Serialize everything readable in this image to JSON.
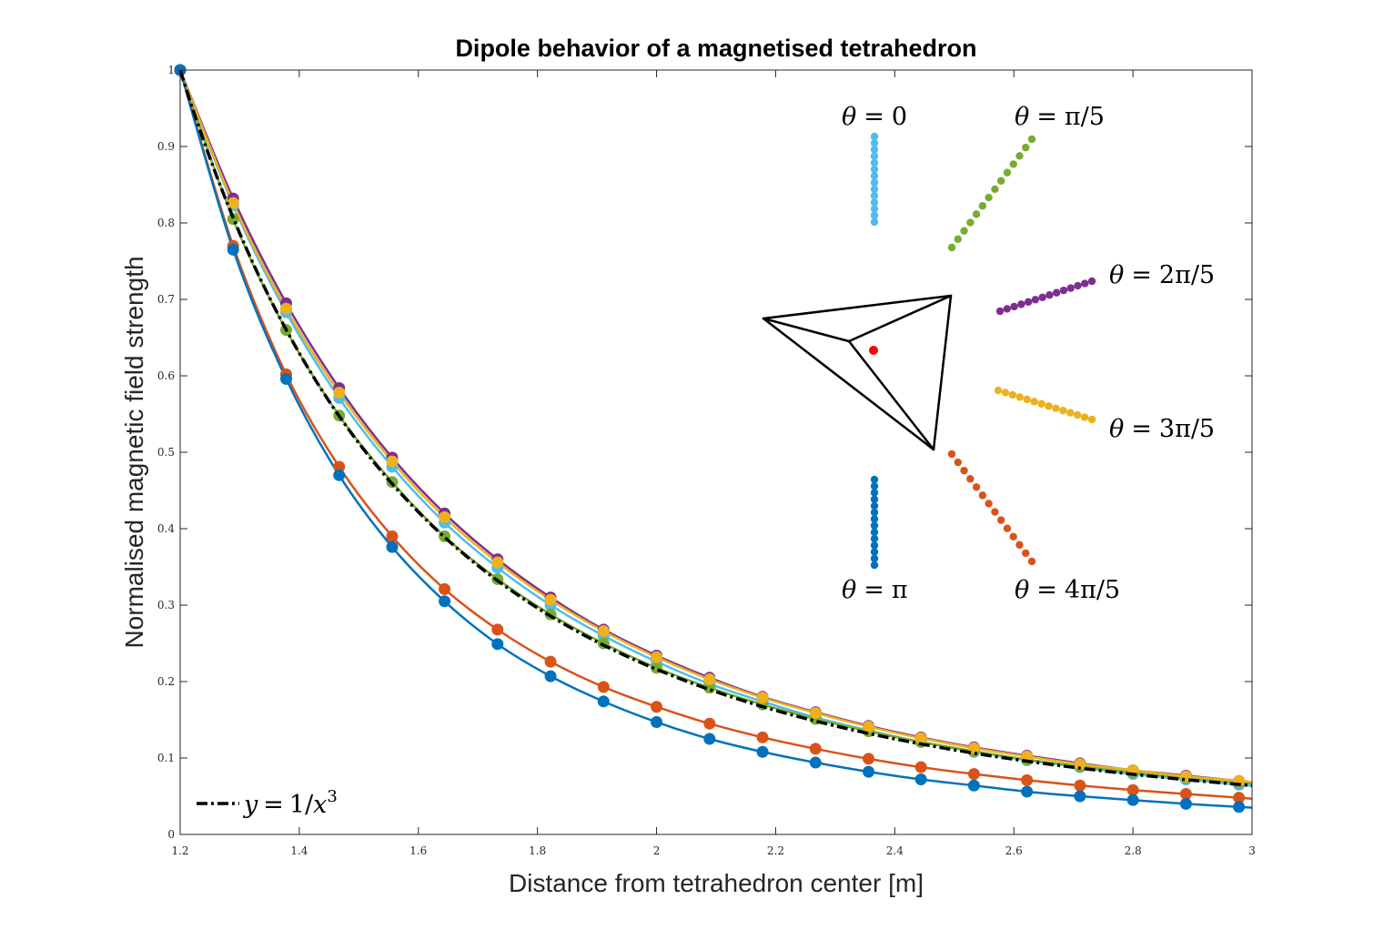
{
  "chart_data": {
    "type": "line",
    "title": "Dipole behavior of a magnetised tetrahedron",
    "xlabel": "Distance from tetrahedron center [m]",
    "ylabel": "Normalised magnetic field strength",
    "xlim": [
      1.2,
      3
    ],
    "ylim": [
      0,
      1
    ],
    "xticks": [
      "1.2",
      "1.4",
      "1.6",
      "1.8",
      "2",
      "2.2",
      "2.4",
      "2.6",
      "2.8",
      "3"
    ],
    "yticks": [
      "0",
      "0.1",
      "0.2",
      "0.3",
      "0.4",
      "0.5",
      "0.6",
      "0.7",
      "0.8",
      "0.9",
      "1"
    ],
    "grid": false,
    "x_markers": [
      1.2,
      1.289,
      1.378,
      1.467,
      1.556,
      1.644,
      1.733,
      1.822,
      1.911,
      2.0,
      2.089,
      2.178,
      2.267,
      2.356,
      2.444,
      2.533,
      2.622,
      2.711,
      2.8,
      2.889,
      2.978
    ],
    "reference": {
      "legend_symbol": "y",
      "legend_rhs_base": "1/",
      "legend_rhs_var": "x",
      "legend_rhs_exp": "3",
      "legend_placement": "bottom-left",
      "color": "#000000",
      "style": "dash-dot",
      "formula_exponent": 3
    },
    "series": [
      {
        "label_theta": "θ",
        "label_value": "0",
        "theta": 0.0,
        "color": "#4DBEEE",
        "values": [
          1.0,
          0.823,
          0.683,
          0.571,
          0.481,
          0.408,
          0.349,
          0.3,
          0.26,
          0.226,
          0.197,
          0.174,
          0.153,
          0.136,
          0.121,
          0.108,
          0.097,
          0.088,
          0.079,
          0.072,
          0.065
        ]
      },
      {
        "label_theta": "θ",
        "label_value": "π/5",
        "theta": 0.628,
        "color": "#77AC30",
        "values": [
          1.0,
          0.805,
          0.66,
          0.548,
          0.461,
          0.39,
          0.334,
          0.288,
          0.25,
          0.218,
          0.192,
          0.17,
          0.151,
          0.135,
          0.121,
          0.109,
          0.098,
          0.089,
          0.081,
          0.074,
          0.068
        ]
      },
      {
        "label_theta": "θ",
        "label_value": "2π/5",
        "theta": 1.257,
        "color": "#7E2F8E",
        "values": [
          1.0,
          0.832,
          0.695,
          0.584,
          0.493,
          0.42,
          0.36,
          0.31,
          0.268,
          0.234,
          0.205,
          0.18,
          0.16,
          0.142,
          0.127,
          0.114,
          0.103,
          0.093,
          0.084,
          0.077,
          0.07
        ]
      },
      {
        "label_theta": "θ",
        "label_value": "3π/5",
        "theta": 1.885,
        "color": "#EDB120",
        "values": [
          1.0,
          0.826,
          0.688,
          0.578,
          0.488,
          0.415,
          0.356,
          0.307,
          0.266,
          0.232,
          0.203,
          0.179,
          0.159,
          0.141,
          0.126,
          0.113,
          0.102,
          0.092,
          0.084,
          0.076,
          0.07
        ]
      },
      {
        "label_theta": "θ",
        "label_value": "4π/5",
        "theta": 2.513,
        "color": "#D95319",
        "values": [
          1.0,
          0.77,
          0.602,
          0.481,
          0.39,
          0.321,
          0.268,
          0.226,
          0.193,
          0.167,
          0.145,
          0.127,
          0.112,
          0.099,
          0.088,
          0.079,
          0.071,
          0.064,
          0.058,
          0.053,
          0.048
        ]
      },
      {
        "label_theta": "θ",
        "label_value": "π",
        "theta": 3.1416,
        "color": "#0072BD",
        "values": [
          1.0,
          0.765,
          0.596,
          0.47,
          0.376,
          0.305,
          0.249,
          0.207,
          0.174,
          0.147,
          0.125,
          0.108,
          0.094,
          0.082,
          0.072,
          0.064,
          0.056,
          0.05,
          0.045,
          0.04,
          0.036
        ]
      }
    ],
    "inset": {
      "tetrahedron_color": "#000000",
      "center_color": "#FF0000"
    }
  }
}
